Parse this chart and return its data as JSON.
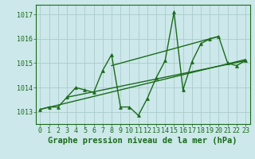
{
  "background_color": "#cce8ea",
  "grid_color": "#aacccc",
  "line_color": "#1a6b1a",
  "title": "Graphe pression niveau de la mer (hPa)",
  "xlim": [
    -0.5,
    23.5
  ],
  "ylim": [
    1012.5,
    1017.4
  ],
  "yticks": [
    1013,
    1014,
    1015,
    1016,
    1017
  ],
  "xticks": [
    0,
    1,
    2,
    3,
    4,
    5,
    6,
    7,
    8,
    9,
    10,
    11,
    12,
    13,
    14,
    15,
    16,
    17,
    18,
    19,
    20,
    21,
    22,
    23
  ],
  "main_x": [
    0,
    1,
    2,
    3,
    4,
    5,
    6,
    7,
    8,
    9,
    10,
    11,
    12,
    13,
    14,
    15,
    16,
    17,
    18,
    19,
    20,
    21,
    22,
    23
  ],
  "main_y": [
    1013.1,
    1013.2,
    1013.2,
    1013.6,
    1014.0,
    1013.9,
    1013.8,
    1014.7,
    1015.35,
    1013.2,
    1013.2,
    1012.85,
    1013.55,
    1014.4,
    1015.1,
    1017.1,
    1013.9,
    1015.05,
    1015.8,
    1016.0,
    1016.1,
    1015.0,
    1014.9,
    1015.1
  ],
  "trend_lines": [
    {
      "x": [
        0,
        23
      ],
      "y": [
        1013.1,
        1015.15
      ]
    },
    {
      "x": [
        3,
        23
      ],
      "y": [
        1013.6,
        1015.1
      ]
    },
    {
      "x": [
        8,
        20
      ],
      "y": [
        1014.9,
        1016.1
      ]
    }
  ],
  "title_fontsize": 7.5,
  "tick_fontsize": 6,
  "markersize": 2.8,
  "linewidth": 1.0
}
